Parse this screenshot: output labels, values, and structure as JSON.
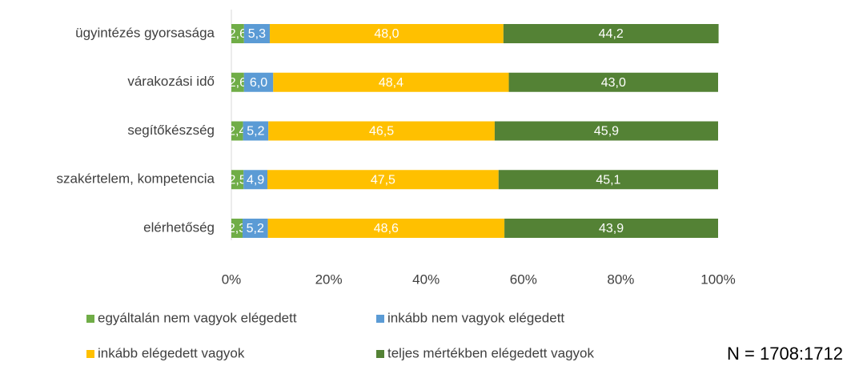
{
  "chart_data": {
    "type": "stacked-barh",
    "categories": [
      "ügyintézés gyorsasága",
      "várakozási idő",
      "segítőkészség",
      "szakértelem, kompetencia",
      "elérhetőség"
    ],
    "series": [
      {
        "name": "egyáltalán nem vagyok elégedett",
        "color": "#70ad47",
        "values": [
          2.6,
          2.6,
          2.4,
          2.5,
          2.3
        ],
        "value_labels": [
          "2,6",
          "2,6",
          "2,4",
          "2,5",
          "2,3"
        ]
      },
      {
        "name": "inkább nem vagyok elégedett",
        "color": "#5b9bd5",
        "values": [
          5.3,
          6.0,
          5.2,
          4.9,
          5.2
        ],
        "value_labels": [
          "5,3",
          "6,0",
          "5,2",
          "4,9",
          "5,2"
        ]
      },
      {
        "name": "inkább elégedett vagyok",
        "color": "#ffc000",
        "values": [
          48.0,
          48.4,
          46.5,
          47.5,
          48.6
        ],
        "value_labels": [
          "48,0",
          "48,4",
          "46,5",
          "47,5",
          "48,6"
        ]
      },
      {
        "name": "teljes mértékben elégedett vagyok",
        "color": "#548235",
        "values": [
          44.2,
          43.0,
          45.9,
          45.1,
          43.9
        ],
        "value_labels": [
          "44,2",
          "43,0",
          "45,9",
          "45,1",
          "43,9"
        ]
      }
    ],
    "xlim": [
      0,
      100
    ],
    "xticks": [
      {
        "value": 0,
        "label": "0%"
      },
      {
        "value": 20,
        "label": "20%"
      },
      {
        "value": 40,
        "label": "40%"
      },
      {
        "value": 60,
        "label": "60%"
      },
      {
        "value": 80,
        "label": "80%"
      },
      {
        "value": 100,
        "label": "100%"
      }
    ],
    "annotation": "N = 1708:1712"
  }
}
